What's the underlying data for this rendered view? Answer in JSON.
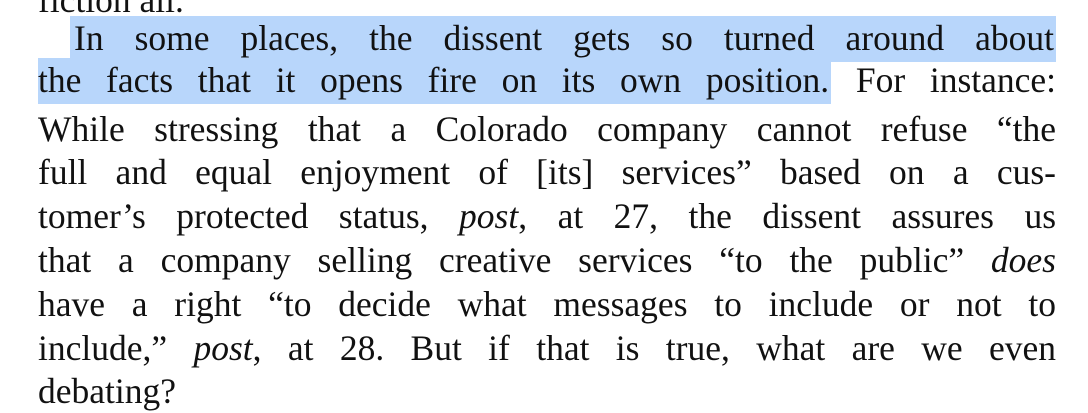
{
  "document": {
    "top_fragment": "fiction all.",
    "highlighted_sentence_part1": "In some places, the dissent gets so turned around about",
    "highlighted_sentence_part2": "the facts that it opens fire on its own position.",
    "line2_tail": "For instance:",
    "line3": "While stressing that a Colorado company cannot refuse “the",
    "line4": "full and equal enjoyment of [its] services” based on a cus-",
    "line5_a": "tomer’s protected status,",
    "line5_post": "post",
    "line5_b": ", at 27, the dissent assures us",
    "line6_a": "that a company selling creative services “to the public”",
    "line6_does": "does",
    "line7": "have a right “to decide what messages to include or not to",
    "line8_a": "include,”",
    "line8_post": "post",
    "line8_b": ", at 28.  But if that is true, what are we even",
    "line9": "debating?"
  },
  "colors": {
    "highlight": "#b8d6fb",
    "text": "#111111",
    "background": "#ffffff"
  }
}
